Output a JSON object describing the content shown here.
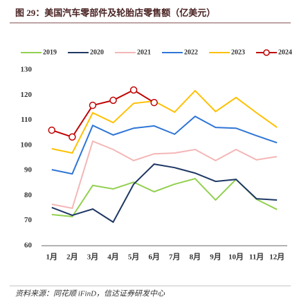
{
  "chart_data": {
    "type": "line",
    "title": "图 29：美国汽车零部件及轮胎店零售额（亿美元）",
    "source": "资料来源：同花顺 iFinD，信达证券研发中心",
    "categories": [
      "1月",
      "2月",
      "3月",
      "4月",
      "5月",
      "6月",
      "7月",
      "8月",
      "9月",
      "10月",
      "11月",
      "12月"
    ],
    "series": [
      {
        "name": "2019",
        "color": "#92d050",
        "values": [
          72.4,
          71.6,
          84.0,
          82.6,
          85.3,
          81.5,
          84.5,
          86.7,
          78.2,
          86.4,
          78.5,
          74.4
        ]
      },
      {
        "name": "2020",
        "color": "#1f3864",
        "values": [
          75.2,
          72.1,
          74.6,
          69.4,
          84.5,
          92.5,
          91.1,
          88.9,
          85.6,
          86.4,
          78.7,
          78.2
        ]
      },
      {
        "name": "2021",
        "color": "#f4b6b6",
        "values": [
          76.5,
          74.9,
          101.6,
          98.3,
          93.9,
          96.6,
          96.9,
          98.3,
          93.9,
          98.3,
          94.2,
          95.5
        ]
      },
      {
        "name": "2022",
        "color": "#2e75d6",
        "values": [
          90.3,
          88.6,
          107.9,
          104.1,
          106.8,
          107.7,
          104.4,
          111.5,
          107.1,
          106.8,
          103.8,
          101.0
        ]
      },
      {
        "name": "2023",
        "color": "#ffc000",
        "values": [
          98.6,
          96.9,
          112.9,
          109.0,
          116.7,
          117.6,
          113.2,
          121.7,
          113.4,
          119.0,
          112.9,
          107.1
        ]
      },
      {
        "name": "2024",
        "color": "#c00000",
        "marker": "circle",
        "values": [
          106.0,
          103.3,
          115.9,
          117.9,
          122.0,
          117.0,
          null,
          null,
          null,
          null,
          null,
          null
        ]
      }
    ],
    "ylim": [
      60,
      130
    ],
    "yticks": [
      60,
      70,
      80,
      90,
      100,
      110,
      120,
      130
    ],
    "legend": "top"
  }
}
